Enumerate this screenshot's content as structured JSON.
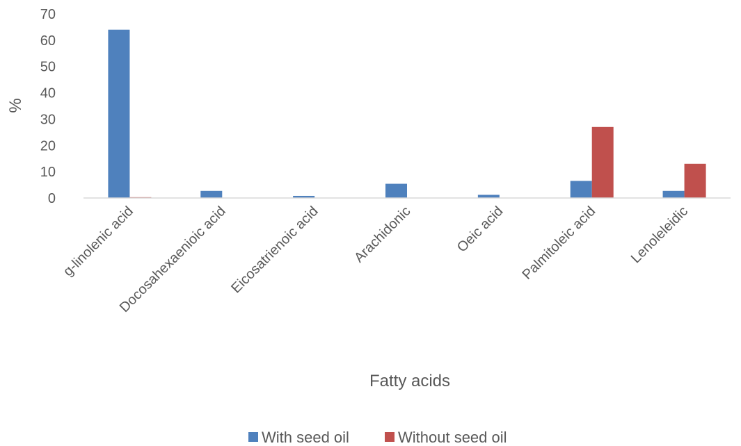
{
  "chart_data": {
    "type": "bar",
    "title": "",
    "xlabel": "Fatty acids",
    "ylabel": "%",
    "ylim": [
      0,
      70
    ],
    "yticks": [
      0,
      10,
      20,
      30,
      40,
      50,
      60,
      70
    ],
    "grid": false,
    "legend_position": "bottom",
    "categories": [
      "g-linolenic acid",
      "Docosahexaenioic acid",
      "Eicosatrienoic acid",
      "Arachidonic",
      "Oeic acid",
      "Palmitoleic acid",
      "Lenoleleidic"
    ],
    "series": [
      {
        "name": "With seed oil",
        "color": "#4F81BD",
        "values": [
          64.0,
          2.7,
          0.8,
          5.4,
          1.2,
          6.5,
          2.7
        ]
      },
      {
        "name": "Without seed oil",
        "color": "#C0504D",
        "values": [
          0.3,
          0.0,
          0.1,
          0.0,
          0.1,
          27.0,
          13.0
        ]
      }
    ]
  }
}
